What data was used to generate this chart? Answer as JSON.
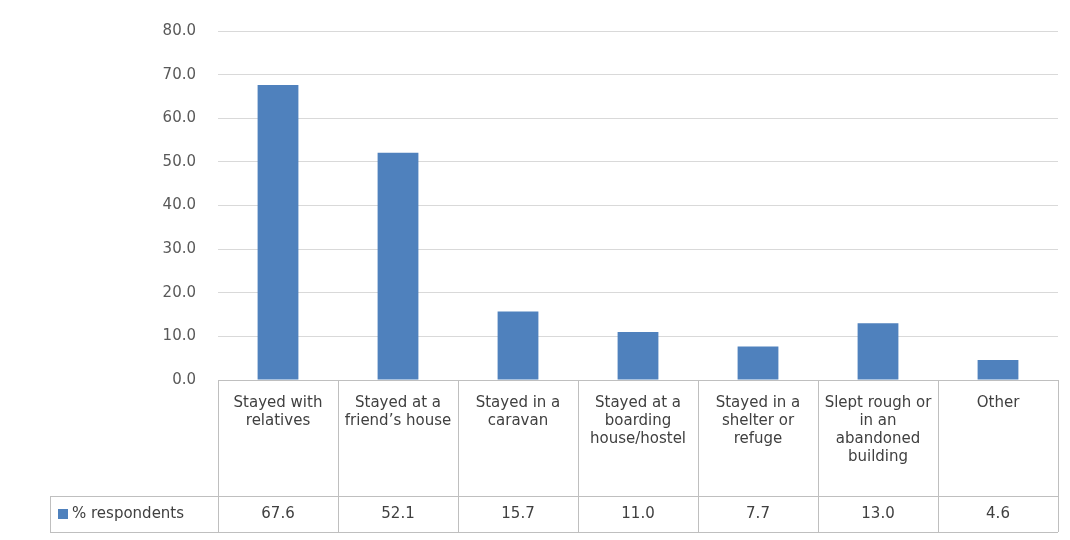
{
  "chart_data": {
    "type": "bar",
    "categories": [
      "Stayed with relatives",
      "Stayed at a friend’s house",
      "Stayed in a caravan",
      "Stayed at a boarding house/hostel",
      "Stayed in a shelter or refuge",
      "Slept rough or in an abandoned building",
      "Other"
    ],
    "series": [
      {
        "name": "% respondents",
        "color": "#4f81bd",
        "values": [
          67.6,
          52.1,
          15.7,
          11.0,
          7.7,
          13.0,
          4.6
        ],
        "value_labels": [
          "67.6",
          "52.1",
          "15.7",
          "11.0",
          "7.7",
          "13.0",
          "4.6"
        ]
      }
    ],
    "ylim": [
      0,
      80
    ],
    "yticks": [
      {
        "value": 0,
        "label": "0.0"
      },
      {
        "value": 10,
        "label": "10.0"
      },
      {
        "value": 20,
        "label": "20.0"
      },
      {
        "value": 30,
        "label": "30.0"
      },
      {
        "value": 40,
        "label": "40.0"
      },
      {
        "value": 50,
        "label": "50.0"
      },
      {
        "value": 60,
        "label": "60.0"
      },
      {
        "value": 70,
        "label": "70.0"
      },
      {
        "value": 80,
        "label": "80.0"
      }
    ],
    "grid": "y",
    "legend": "bottom"
  }
}
